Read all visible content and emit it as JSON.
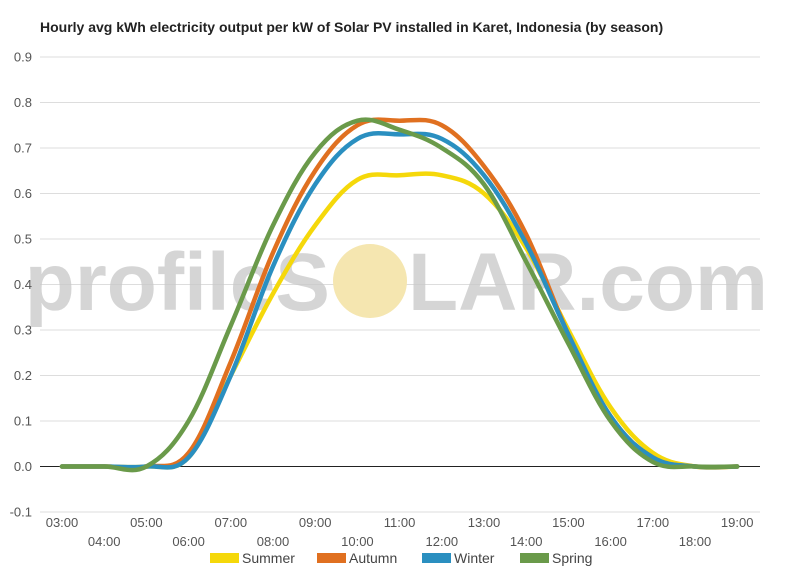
{
  "title": "Hourly avg kWh electricity output per kW of Solar PV installed in Karet, Indonesia (by season)",
  "watermark": {
    "left_text": "profileS",
    "right_text": "LAR.com",
    "sun_color": "#f5e6b0"
  },
  "chart_data": {
    "type": "line",
    "title": "Hourly avg kWh electricity output per kW of Solar PV installed in Karet, Indonesia (by season)",
    "xlabel": "",
    "ylabel": "",
    "ylim": [
      -0.1,
      0.9
    ],
    "yticks": [
      "-0.1",
      "0.0",
      "0.1",
      "0.2",
      "0.3",
      "0.4",
      "0.5",
      "0.6",
      "0.7",
      "0.8",
      "0.9"
    ],
    "ytick_values": [
      -0.1,
      0.0,
      0.1,
      0.2,
      0.3,
      0.4,
      0.5,
      0.6,
      0.7,
      0.8,
      0.9
    ],
    "x": [
      "03:00",
      "04:00",
      "05:00",
      "06:00",
      "07:00",
      "08:00",
      "09:00",
      "10:00",
      "11:00",
      "12:00",
      "13:00",
      "14:00",
      "15:00",
      "16:00",
      "17:00",
      "18:00",
      "19:00"
    ],
    "grid": true,
    "legend_position": "bottom",
    "series": [
      {
        "name": "Summer",
        "color": "#f5d80a",
        "values": [
          0.0,
          0.0,
          0.0,
          0.02,
          0.2,
          0.38,
          0.53,
          0.63,
          0.64,
          0.64,
          0.6,
          0.48,
          0.3,
          0.13,
          0.03,
          0.0,
          0.0
        ]
      },
      {
        "name": "Autumn",
        "color": "#e07020",
        "values": [
          0.0,
          0.0,
          0.0,
          0.03,
          0.23,
          0.47,
          0.65,
          0.75,
          0.76,
          0.75,
          0.66,
          0.51,
          0.29,
          0.11,
          0.02,
          0.0,
          0.0
        ]
      },
      {
        "name": "Winter",
        "color": "#2a8fc0",
        "values": [
          0.0,
          0.0,
          0.0,
          0.02,
          0.2,
          0.44,
          0.62,
          0.72,
          0.73,
          0.72,
          0.64,
          0.49,
          0.29,
          0.11,
          0.02,
          0.0,
          0.0
        ]
      },
      {
        "name": "Spring",
        "color": "#6a9a4a",
        "values": [
          0.0,
          0.0,
          0.0,
          0.1,
          0.31,
          0.53,
          0.69,
          0.76,
          0.74,
          0.7,
          0.62,
          0.45,
          0.27,
          0.1,
          0.01,
          0.0,
          0.0
        ]
      }
    ]
  }
}
